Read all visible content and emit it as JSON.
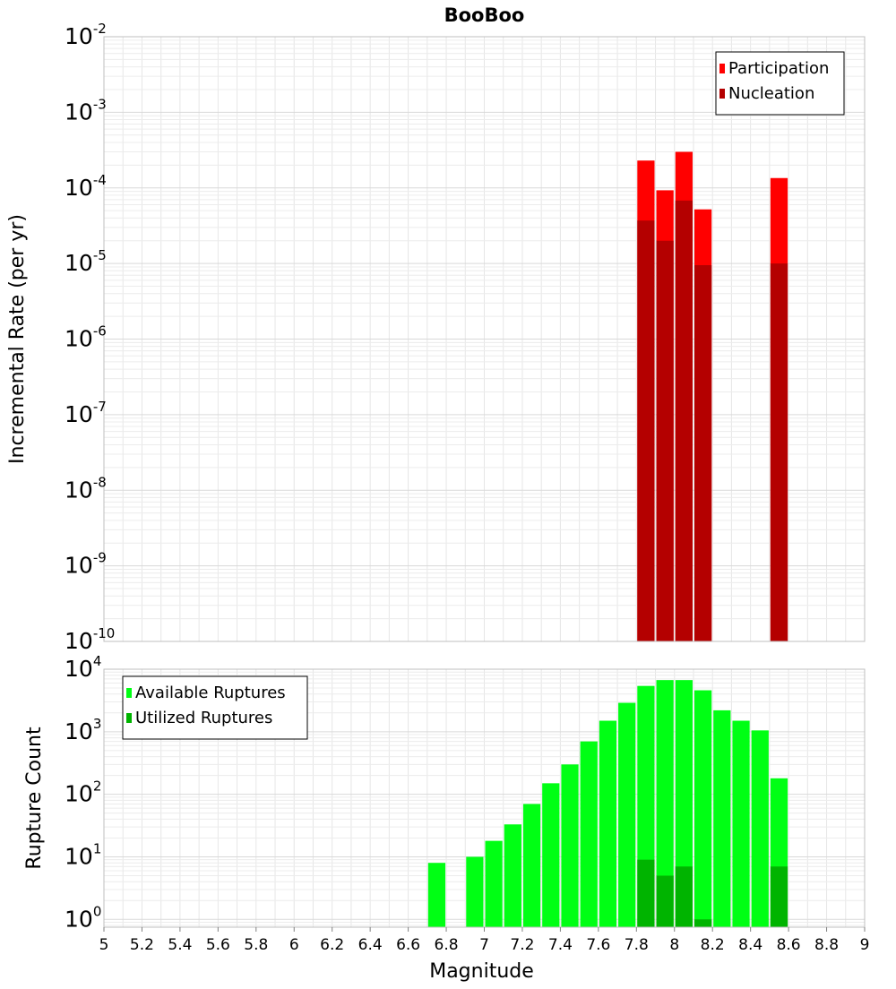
{
  "chart_data": [
    {
      "type": "bar",
      "title": "BooBoo",
      "xlabel": "",
      "ylabel": "Incremental Rate (per yr)",
      "xlim": [
        5,
        9
      ],
      "ylim": [
        1e-10,
        0.01
      ],
      "yscale": "log",
      "y_tick_labels": [
        {
          "base": "10",
          "exp": "-10",
          "value": 1e-10
        },
        {
          "base": "10",
          "exp": "-9",
          "value": 1e-09
        },
        {
          "base": "10",
          "exp": "-8",
          "value": 1e-08
        },
        {
          "base": "10",
          "exp": "-7",
          "value": 1e-07
        },
        {
          "base": "10",
          "exp": "-6",
          "value": 1e-06
        },
        {
          "base": "10",
          "exp": "-5",
          "value": 1e-05
        },
        {
          "base": "10",
          "exp": "-4",
          "value": 0.0001
        },
        {
          "base": "10",
          "exp": "-3",
          "value": 0.001
        },
        {
          "base": "10",
          "exp": "-2",
          "value": 0.01
        }
      ],
      "grid": true,
      "legend_position": "top-right",
      "bar_width": 0.1,
      "series": [
        {
          "name": "Participation",
          "color": "#ff0000",
          "x": [
            7.85,
            7.95,
            8.05,
            8.15,
            8.55
          ],
          "values": [
            0.00023,
            9.3e-05,
            0.0003,
            5.2e-05,
            0.000135
          ]
        },
        {
          "name": "Nucleation",
          "color": "#b40000",
          "x": [
            7.85,
            7.95,
            8.05,
            8.15,
            8.55
          ],
          "values": [
            3.7e-05,
            2e-05,
            6.8e-05,
            9.5e-06,
            1e-05
          ]
        }
      ]
    },
    {
      "type": "bar",
      "title": "",
      "xlabel": "Magnitude",
      "ylabel": "Rupture Count",
      "xlim": [
        5,
        9
      ],
      "ylim": [
        0.75,
        10000
      ],
      "yscale": "log",
      "x_tick_labels": [
        "5",
        "5.2",
        "5.4",
        "5.6",
        "5.8",
        "6",
        "6.2",
        "6.4",
        "6.6",
        "6.8",
        "7",
        "7.2",
        "7.4",
        "7.6",
        "7.8",
        "8",
        "8.2",
        "8.4",
        "8.6",
        "8.8",
        "9"
      ],
      "y_tick_labels": [
        {
          "base": "10",
          "exp": "0",
          "value": 1
        },
        {
          "base": "10",
          "exp": "1",
          "value": 10
        },
        {
          "base": "10",
          "exp": "2",
          "value": 100
        },
        {
          "base": "10",
          "exp": "3",
          "value": 1000
        },
        {
          "base": "10",
          "exp": "4",
          "value": 10000
        }
      ],
      "grid": true,
      "legend_position": "top-left",
      "bar_width": 0.1,
      "series": [
        {
          "name": "Available Ruptures",
          "color": "#00ff14",
          "x": [
            6.75,
            6.95,
            7.05,
            7.15,
            7.25,
            7.35,
            7.45,
            7.55,
            7.65,
            7.75,
            7.85,
            7.95,
            8.05,
            8.15,
            8.25,
            8.35,
            8.45,
            8.55
          ],
          "values": [
            8,
            10,
            18,
            33,
            70,
            150,
            300,
            700,
            1500,
            2900,
            5400,
            6700,
            6700,
            4600,
            2200,
            1500,
            1050,
            180
          ]
        },
        {
          "name": "Utilized Ruptures",
          "color": "#00b400",
          "x": [
            7.85,
            7.95,
            8.05,
            8.15,
            8.55
          ],
          "values": [
            9,
            5,
            7,
            1,
            7
          ]
        }
      ]
    }
  ]
}
